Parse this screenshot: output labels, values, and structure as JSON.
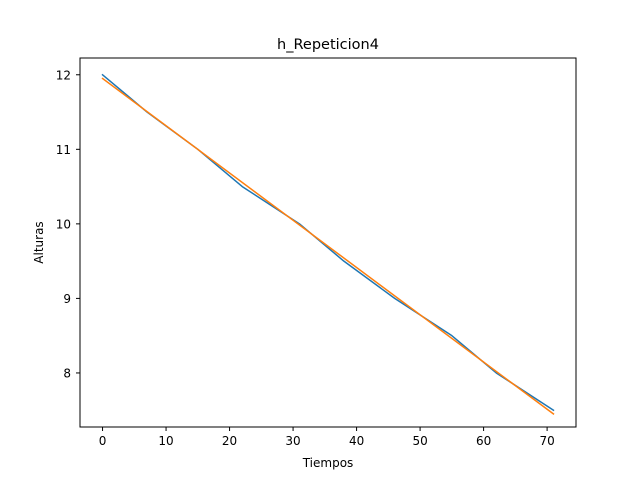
{
  "chart_data": {
    "type": "line",
    "title": "h_Repeticion4",
    "xlabel": "Tiempos",
    "ylabel": "Alturas",
    "xlim": [
      -3.55,
      74.55
    ],
    "ylim": [
      7.275,
      12.225
    ],
    "xticks": [
      0,
      10,
      20,
      30,
      40,
      50,
      60,
      70
    ],
    "yticks": [
      8,
      9,
      10,
      11,
      12
    ],
    "grid": false,
    "series": [
      {
        "color": "#1f77b4",
        "x": [
          0,
          7,
          15,
          22,
          31,
          38,
          46,
          55,
          62,
          71
        ],
        "y": [
          12.0,
          11.5,
          11.0,
          10.5,
          10.0,
          9.5,
          9.0,
          8.5,
          8.0,
          7.5
        ]
      },
      {
        "color": "#ff7f0e",
        "x": [
          0,
          71
        ],
        "y": [
          11.95,
          7.45
        ]
      }
    ]
  }
}
